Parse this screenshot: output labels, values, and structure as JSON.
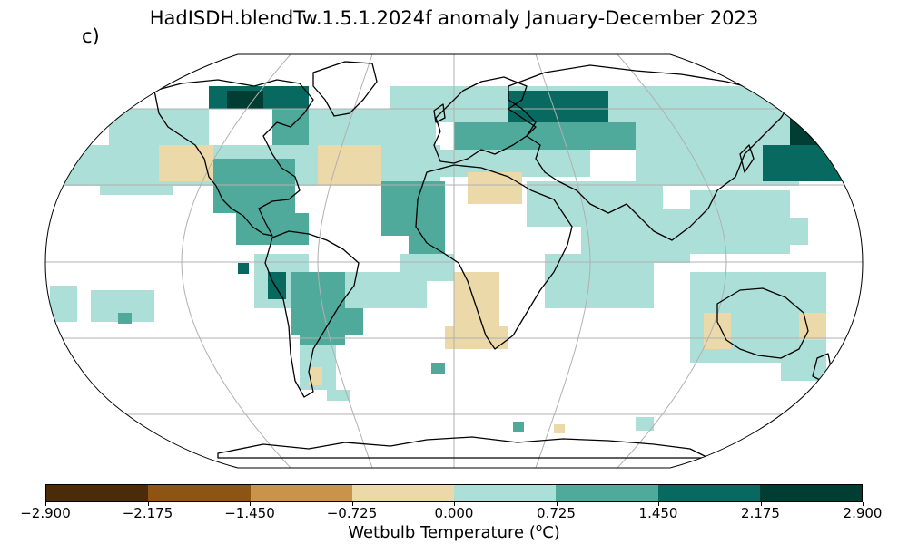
{
  "title": "HadISDH.blendTw.1.5.1.2024f anomaly January-December 2023",
  "panel_label": "c)",
  "colorbar": {
    "label_prefix": "Wetbulb Temperature (",
    "label_unit_sup": "o",
    "label_suffix": "C)",
    "ticks": [
      "−2.900",
      "−2.175",
      "−1.450",
      "−0.725",
      "0.000",
      "0.725",
      "1.450",
      "2.175",
      "2.900"
    ],
    "colors": [
      "#4a2c0a",
      "#8d5414",
      "#c9944a",
      "#ecd9a9",
      "#acdfd7",
      "#50aa9c",
      "#07695f",
      "#013d33"
    ]
  },
  "map_data": {
    "projection": "Robinson",
    "variable": "wet bulb temperature anomaly",
    "regions": [
      {
        "region": "Arctic Canada / Greenland",
        "level": "1.450 to 2.900"
      },
      {
        "region": "North Atlantic / Europe",
        "level": "0.725 to 1.450"
      },
      {
        "region": "Northeast Asia",
        "level": "1.450 to 2.175"
      },
      {
        "region": "Central North America",
        "level": "-0.725 to 0.000"
      },
      {
        "region": "Western Andes",
        "level": "1.450 to 2.175"
      },
      {
        "region": "Southern Africa",
        "level": "-0.725 to 0.000"
      },
      {
        "region": "Northern Australia",
        "level": "-0.725 to 0.000"
      }
    ]
  }
}
